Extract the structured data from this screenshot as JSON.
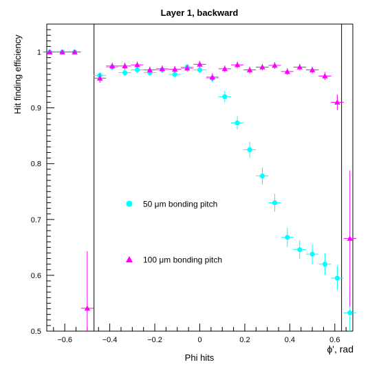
{
  "chart_data": {
    "type": "scatter",
    "title": "Layer 1, backward",
    "xlabel": "Phi hits",
    "xlabel_corner": "ϕ', rad",
    "ylabel": "Hit finding efficiency",
    "xlim": [
      -0.68,
      0.68
    ],
    "ylim": [
      0.5,
      1.05
    ],
    "x_ticks": [
      -0.6,
      -0.4,
      -0.2,
      0,
      0.2,
      0.4,
      0.6
    ],
    "x_tick_labels": [
      "−0.6",
      "−0.4",
      "−0.2",
      "0",
      "0.2",
      "0.4",
      "0.6"
    ],
    "y_ticks": [
      0.5,
      0.6,
      0.7,
      0.8,
      0.9,
      1.0
    ],
    "y_tick_labels": [
      "0.5",
      "0.6",
      "0.7",
      "0.8",
      "0.9",
      "1"
    ],
    "vertical_lines": [
      -0.47,
      0.63
    ],
    "grid": false,
    "legend_placement": "center-left",
    "series": [
      {
        "name": "50 μm bonding pitch",
        "marker": "circle",
        "color": "#00ffff",
        "x": [
          -0.667,
          -0.611,
          -0.556,
          -0.444,
          -0.389,
          -0.333,
          -0.278,
          -0.222,
          -0.167,
          -0.111,
          -0.056,
          0.0,
          0.056,
          0.111,
          0.167,
          0.222,
          0.278,
          0.333,
          0.389,
          0.444,
          0.5,
          0.556,
          0.611,
          0.667
        ],
        "y": [
          1.0,
          1.0,
          1.0,
          0.958,
          0.973,
          0.963,
          0.968,
          0.963,
          0.968,
          0.96,
          0.973,
          0.968,
          0.953,
          0.92,
          0.873,
          0.825,
          0.778,
          0.73,
          0.668,
          0.646,
          0.638,
          0.62,
          0.595,
          0.533
        ],
        "yerr": [
          0.002,
          0.002,
          0.002,
          0.006,
          0.006,
          0.006,
          0.006,
          0.006,
          0.006,
          0.006,
          0.006,
          0.006,
          0.007,
          0.01,
          0.012,
          0.014,
          0.015,
          0.016,
          0.017,
          0.017,
          0.018,
          0.019,
          0.022,
          0.04
        ]
      },
      {
        "name": "100 μm bonding pitch",
        "marker": "triangle",
        "color": "#ff00ff",
        "x": [
          -0.667,
          -0.611,
          -0.556,
          -0.5,
          -0.444,
          -0.389,
          -0.333,
          -0.278,
          -0.222,
          -0.167,
          -0.111,
          -0.056,
          0.0,
          0.056,
          0.111,
          0.167,
          0.222,
          0.278,
          0.333,
          0.389,
          0.444,
          0.5,
          0.556,
          0.611,
          0.667
        ],
        "y": [
          1.0,
          1.0,
          1.0,
          0.541,
          0.953,
          0.975,
          0.975,
          0.977,
          0.968,
          0.97,
          0.969,
          0.971,
          0.978,
          0.955,
          0.97,
          0.977,
          0.968,
          0.973,
          0.976,
          0.965,
          0.973,
          0.968,
          0.957,
          0.91,
          0.666
        ],
        "yerr": [
          0.002,
          0.002,
          0.002,
          0.102,
          0.008,
          0.006,
          0.006,
          0.006,
          0.006,
          0.006,
          0.006,
          0.006,
          0.006,
          0.007,
          0.006,
          0.006,
          0.006,
          0.006,
          0.006,
          0.006,
          0.006,
          0.006,
          0.007,
          0.014,
          0.122
        ]
      }
    ]
  }
}
